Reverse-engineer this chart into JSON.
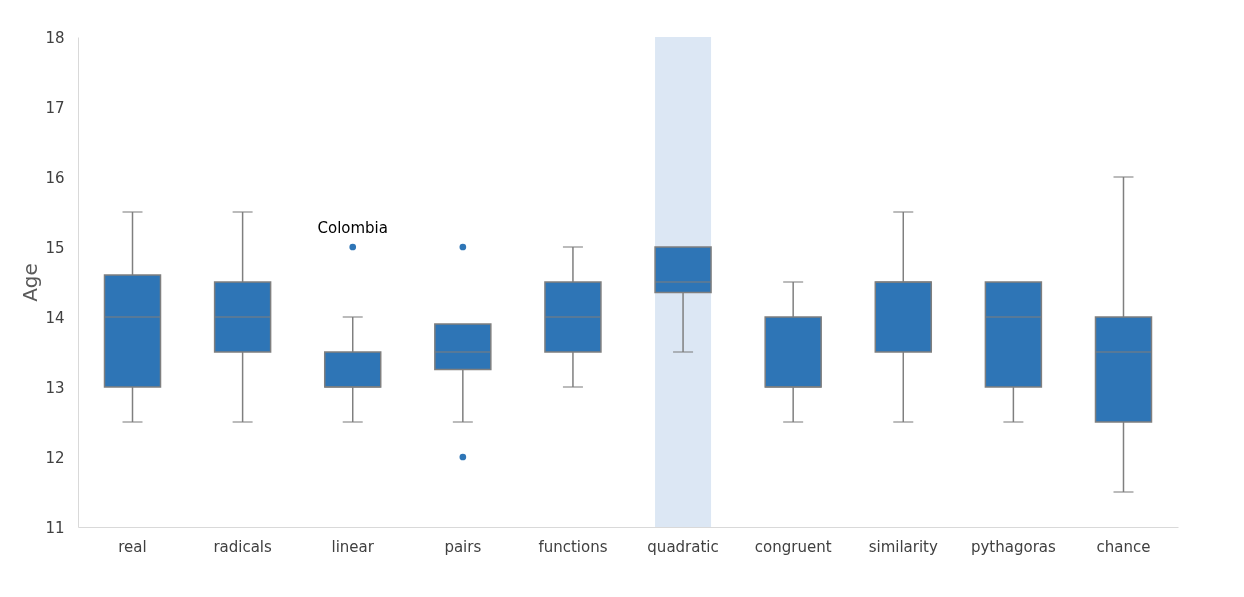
{
  "chart_data": {
    "type": "box",
    "ylabel": "Age",
    "categories": [
      "real",
      "radicals",
      "linear",
      "pairs",
      "functions",
      "quadratic",
      "congruent",
      "similarity",
      "pythagoras",
      "chance"
    ],
    "color": "#2e75b6",
    "boxes": [
      {
        "low": 12.5,
        "q1": 13,
        "median": 14,
        "q3": 14.6,
        "high": 15.5
      },
      {
        "low": 12.5,
        "q1": 13.5,
        "median": 14,
        "q3": 14.5,
        "high": 15.5
      },
      {
        "low": 12.5,
        "q1": 13,
        "median": 13,
        "q3": 13.5,
        "high": 14,
        "outliers": [
          15
        ]
      },
      {
        "low": 12.5,
        "q1": 13.25,
        "median": 13.5,
        "q3": 13.9,
        "high": 13.9,
        "outliers": [
          15,
          12
        ]
      },
      {
        "low": 13,
        "q1": 13.5,
        "median": 14,
        "q3": 14.5,
        "high": 15
      },
      {
        "low": 13.5,
        "q1": 14.35,
        "median": 14.5,
        "q3": 15,
        "high": 15
      },
      {
        "low": 12.5,
        "q1": 13,
        "median": 13,
        "q3": 14,
        "high": 14.5
      },
      {
        "low": 12.5,
        "q1": 13.5,
        "median": 14.5,
        "q3": 14.5,
        "high": 15.5
      },
      {
        "low": 12.5,
        "q1": 13,
        "median": 14,
        "q3": 14.5,
        "high": 14.5
      },
      {
        "low": 11.5,
        "q1": 12.5,
        "median": 13.5,
        "q3": 14,
        "high": 16
      }
    ],
    "ylim": [
      11,
      18
    ],
    "yticks": [
      11,
      12,
      13,
      14,
      15,
      16,
      17,
      18
    ],
    "grid": false,
    "bands": [
      {
        "axis": "x",
        "from": "quadratic",
        "to": "quadratic",
        "color": "#dce7f4"
      }
    ],
    "annotations": [
      "Colombia"
    ]
  }
}
